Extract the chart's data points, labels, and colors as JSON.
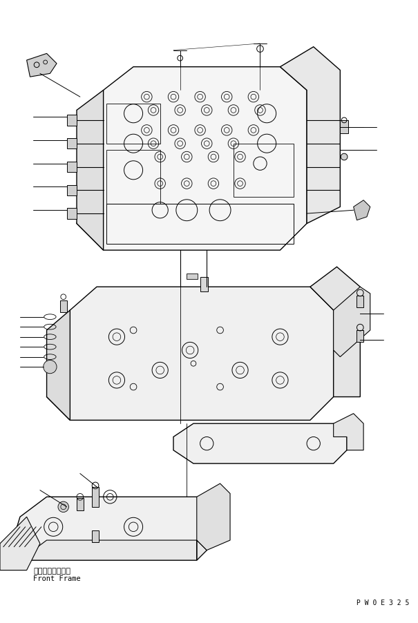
{
  "bg_color": "#ffffff",
  "line_color": "#000000",
  "fig_width": 6.05,
  "fig_height": 9.03,
  "dpi": 100,
  "watermark": "P W 0 E 3 2 5",
  "label_front_frame_jp": "フロントフレーム",
  "label_front_frame_en": "Front Frame"
}
